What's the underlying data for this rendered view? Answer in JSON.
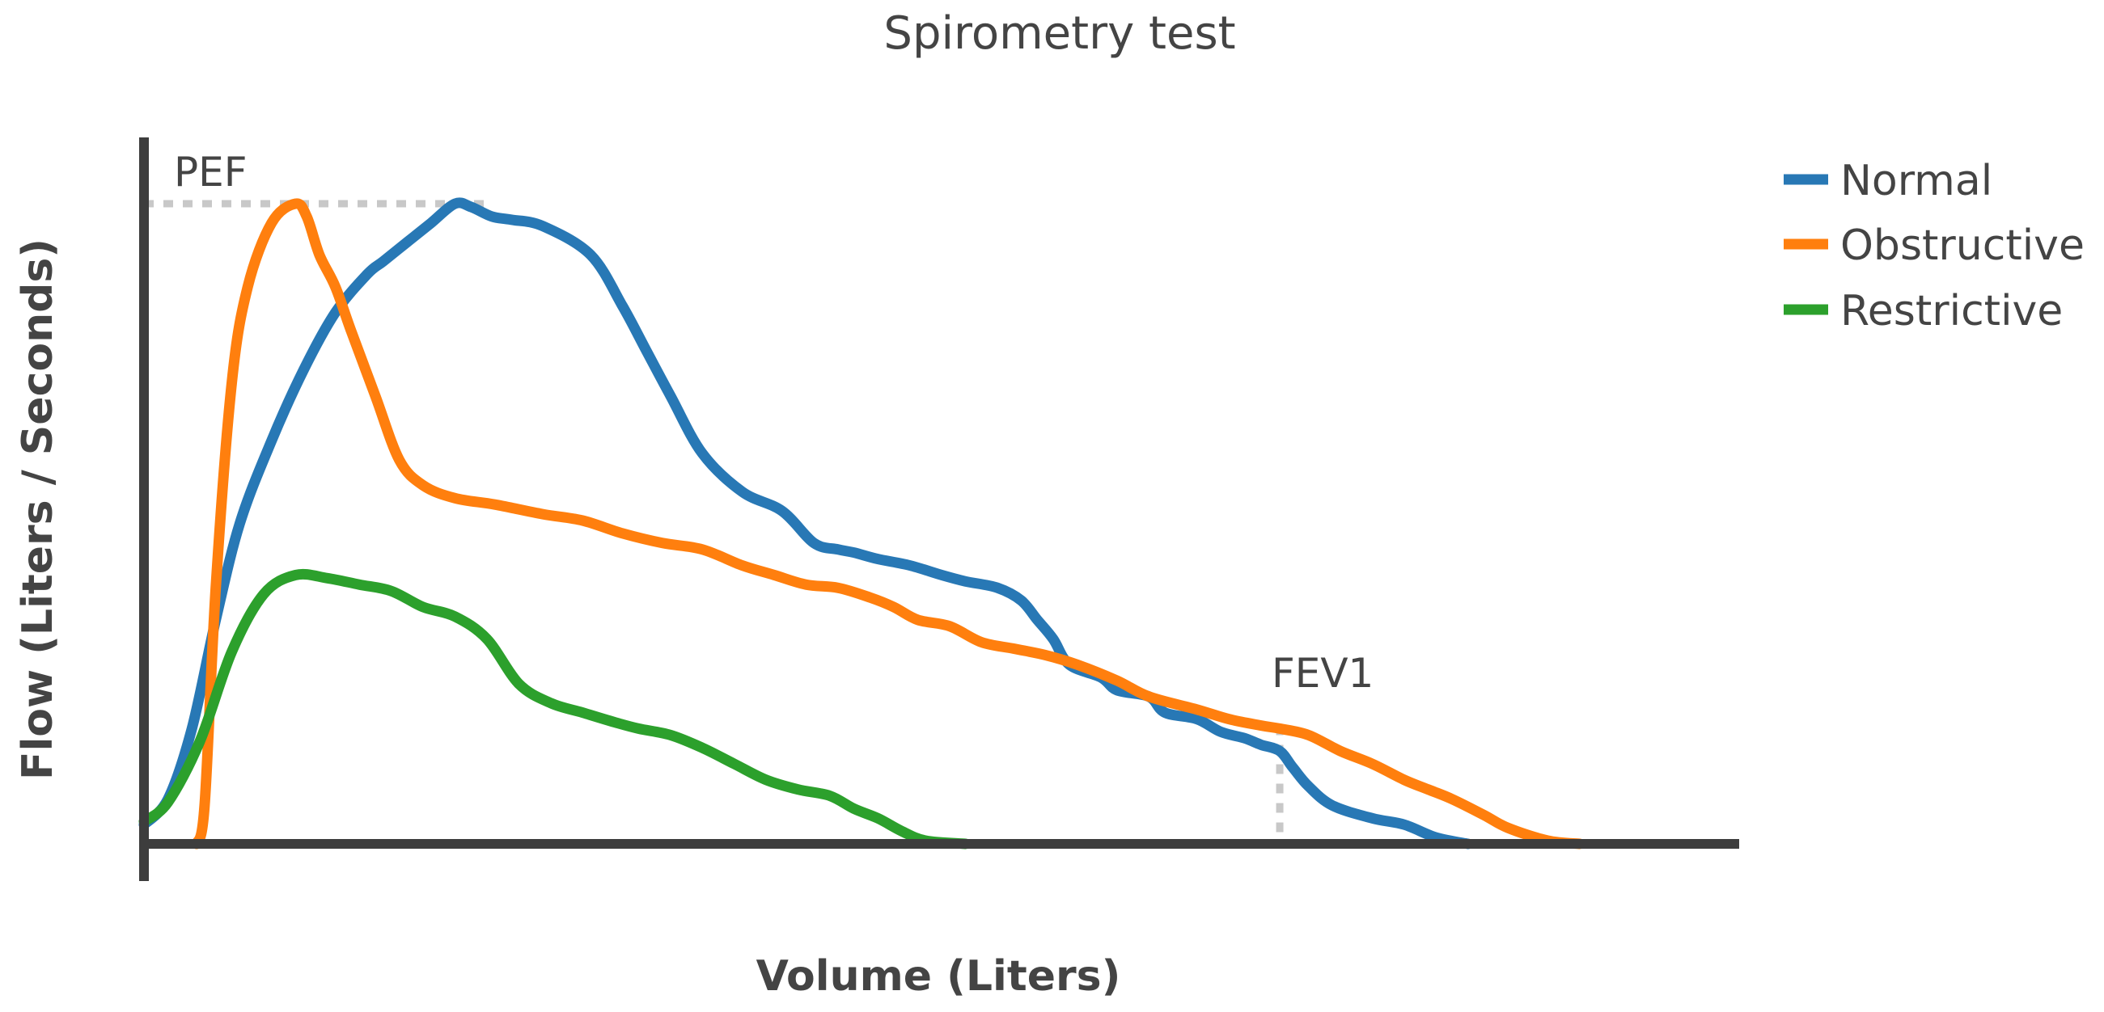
{
  "chart_data": {
    "type": "line",
    "title": "Spirometry test",
    "xlabel": "Volume (Liters)",
    "ylabel": "Flow (Liters / Seconds)",
    "xlim": [
      0,
      10
    ],
    "ylim": [
      0,
      10
    ],
    "grid": false,
    "legend_position": "top-right",
    "annotations": [
      {
        "label": "PEF",
        "x": 2.18,
        "y": 10.0,
        "guide": "horizontal"
      },
      {
        "label": "FEV1",
        "x": 7.12,
        "y": 1.85,
        "guide": "vertical"
      }
    ],
    "series": [
      {
        "name": "Normal",
        "color": "#2878b5",
        "x": [
          0.0,
          0.15,
          0.3,
          0.45,
          0.6,
          0.8,
          1.0,
          1.2,
          1.4,
          1.5,
          1.65,
          1.8,
          1.95,
          2.05,
          2.18,
          2.3,
          2.5,
          2.8,
          3.0,
          3.15,
          3.3,
          3.5,
          3.75,
          4.0,
          4.2,
          4.35,
          4.45,
          4.6,
          4.8,
          5.0,
          5.15,
          5.35,
          5.5,
          5.6,
          5.7,
          5.8,
          6.0,
          6.1,
          6.3,
          6.4,
          6.6,
          6.75,
          6.9,
          7.0,
          7.12,
          7.2,
          7.3,
          7.45,
          7.7,
          7.9,
          8.1,
          8.3
        ],
        "y": [
          0.3,
          0.7,
          1.8,
          3.5,
          5.0,
          6.3,
          7.4,
          8.3,
          8.9,
          9.1,
          9.4,
          9.7,
          10.0,
          9.95,
          9.8,
          9.75,
          9.65,
          9.2,
          8.4,
          7.7,
          7.0,
          6.1,
          5.5,
          5.2,
          4.7,
          4.6,
          4.55,
          4.45,
          4.35,
          4.2,
          4.1,
          4.0,
          3.8,
          3.5,
          3.2,
          2.8,
          2.6,
          2.4,
          2.3,
          2.05,
          1.95,
          1.75,
          1.65,
          1.55,
          1.45,
          1.2,
          0.9,
          0.6,
          0.4,
          0.3,
          0.1,
          0.0
        ]
      },
      {
        "name": "Obstructive",
        "color": "#ff7f0e",
        "x": [
          0.33,
          0.38,
          0.45,
          0.55,
          0.65,
          0.8,
          0.95,
          1.02,
          1.1,
          1.2,
          1.3,
          1.45,
          1.6,
          1.75,
          1.95,
          2.2,
          2.5,
          2.75,
          3.0,
          3.25,
          3.5,
          3.75,
          3.95,
          4.15,
          4.35,
          4.55,
          4.7,
          4.85,
          5.05,
          5.25,
          5.45,
          5.65,
          5.85,
          6.1,
          6.3,
          6.6,
          6.8,
          7.0,
          7.12,
          7.3,
          7.5,
          7.7,
          7.9,
          8.05,
          8.2,
          8.4,
          8.55,
          8.8,
          9.0
        ],
        "y": [
          0.0,
          0.6,
          4.0,
          7.2,
          8.7,
          9.7,
          10.0,
          9.8,
          9.2,
          8.7,
          8.0,
          7.0,
          6.0,
          5.6,
          5.4,
          5.3,
          5.15,
          5.05,
          4.85,
          4.7,
          4.6,
          4.35,
          4.2,
          4.05,
          4.0,
          3.85,
          3.7,
          3.5,
          3.4,
          3.15,
          3.05,
          2.95,
          2.8,
          2.55,
          2.3,
          2.1,
          1.95,
          1.85,
          1.8,
          1.7,
          1.45,
          1.25,
          1.0,
          0.85,
          0.7,
          0.45,
          0.25,
          0.05,
          0.0
        ]
      },
      {
        "name": "Restrictive",
        "color": "#2ca02c",
        "x": [
          0.0,
          0.15,
          0.35,
          0.55,
          0.75,
          0.95,
          1.15,
          1.35,
          1.55,
          1.75,
          1.95,
          2.15,
          2.35,
          2.55,
          2.75,
          2.95,
          3.1,
          3.3,
          3.5,
          3.7,
          3.9,
          4.1,
          4.3,
          4.45,
          4.6,
          4.75,
          4.9,
          5.15
        ],
        "y": [
          0.35,
          0.65,
          1.6,
          3.0,
          3.9,
          4.2,
          4.15,
          4.05,
          3.95,
          3.7,
          3.55,
          3.2,
          2.5,
          2.2,
          2.05,
          1.9,
          1.8,
          1.7,
          1.5,
          1.25,
          1.0,
          0.85,
          0.75,
          0.55,
          0.4,
          0.2,
          0.05,
          0.0
        ]
      }
    ]
  }
}
